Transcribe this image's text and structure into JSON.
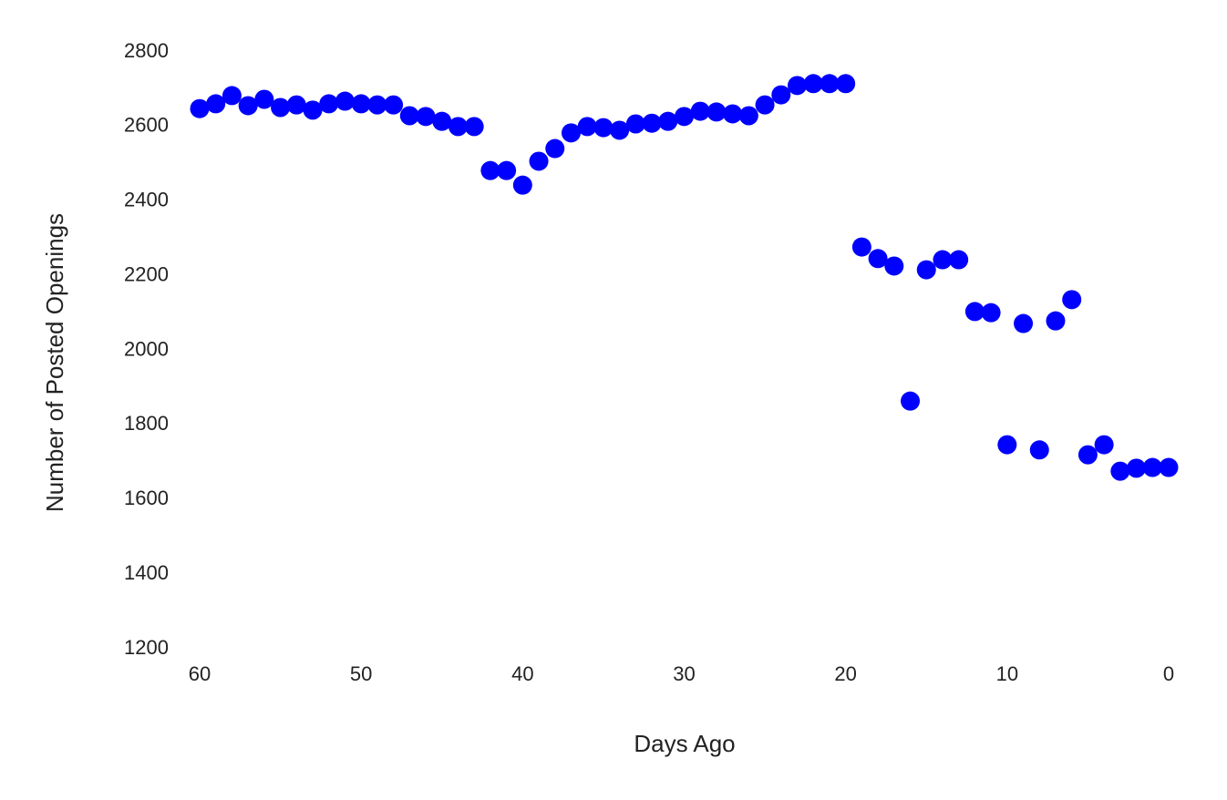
{
  "chart_data": {
    "type": "scatter",
    "x_label": "Days Ago",
    "y_label": "Number of Posted Openings",
    "x": [
      60,
      59,
      58,
      57,
      56,
      55,
      54,
      53,
      52,
      51,
      50,
      49,
      48,
      47,
      46,
      45,
      44,
      43,
      42,
      41,
      40,
      39,
      38,
      37,
      36,
      35,
      34,
      33,
      32,
      31,
      30,
      29,
      28,
      27,
      26,
      25,
      24,
      23,
      22,
      21,
      20,
      19,
      18,
      17,
      16,
      15,
      14,
      13,
      12,
      11,
      10,
      9,
      8,
      7,
      6,
      5,
      4,
      3,
      2,
      1,
      0
    ],
    "values": [
      2648,
      2661,
      2683,
      2656,
      2673,
      2651,
      2658,
      2644,
      2661,
      2668,
      2661,
      2658,
      2658,
      2629,
      2627,
      2614,
      2600,
      2600,
      2482,
      2482,
      2443,
      2507,
      2541,
      2583,
      2600,
      2597,
      2590,
      2607,
      2609,
      2614,
      2627,
      2641,
      2639,
      2634,
      2629,
      2658,
      2685,
      2710,
      2715,
      2715,
      2715,
      2277,
      2246,
      2226,
      1864,
      2216,
      2243,
      2243,
      2104,
      2101,
      1747,
      2072,
      1733,
      2079,
      2136,
      1720,
      1747,
      1676,
      1684,
      1686,
      1686
    ],
    "color": "#0000ff",
    "xlim": [
      60,
      0
    ],
    "ylim": [
      1200,
      2800
    ],
    "xticks": [
      60,
      50,
      40,
      30,
      20,
      10,
      0
    ],
    "yticks": [
      1200,
      1400,
      1600,
      1800,
      2000,
      2200,
      2400,
      2600,
      2800
    ],
    "grid": false
  }
}
